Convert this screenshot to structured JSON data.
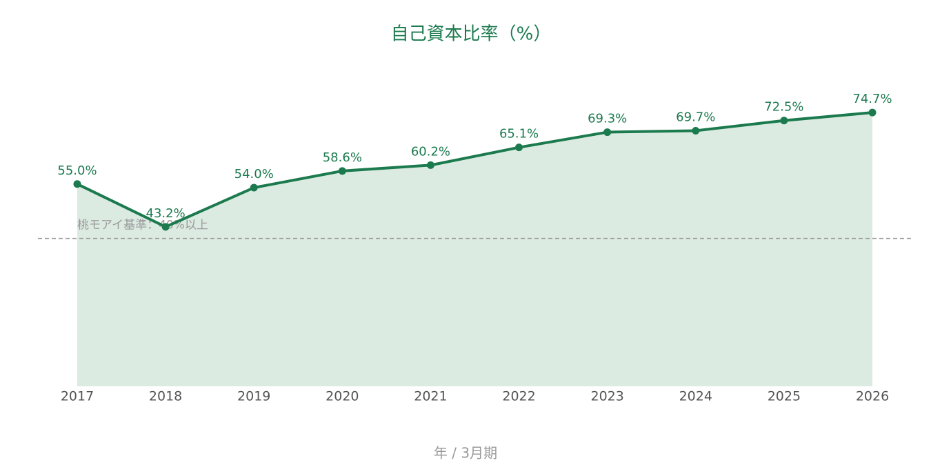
{
  "chart_data": {
    "type": "line",
    "title": "自己資本比率（%）",
    "x_label": "年 / 3月期",
    "categories": [
      "2017",
      "2018",
      "2019",
      "2020",
      "2021",
      "2022",
      "2023",
      "2024",
      "2025",
      "2026"
    ],
    "series": [
      {
        "color": "#1b7a4e",
        "area_color": "#dcebe2",
        "values": [
          55.0,
          43.2,
          54.0,
          58.6,
          60.2,
          65.1,
          69.3,
          69.7,
          72.5,
          74.7
        ],
        "value_labels": [
          "55.0%",
          "43.2%",
          "54.0%",
          "58.6%",
          "60.2%",
          "65.1%",
          "69.3%",
          "69.7%",
          "72.5%",
          "74.7%"
        ]
      }
    ],
    "ylim": [
      0,
      85
    ],
    "reference_line": {
      "value": 40,
      "label": "桃モアイ基準：40%以上",
      "color": "#999999"
    }
  }
}
